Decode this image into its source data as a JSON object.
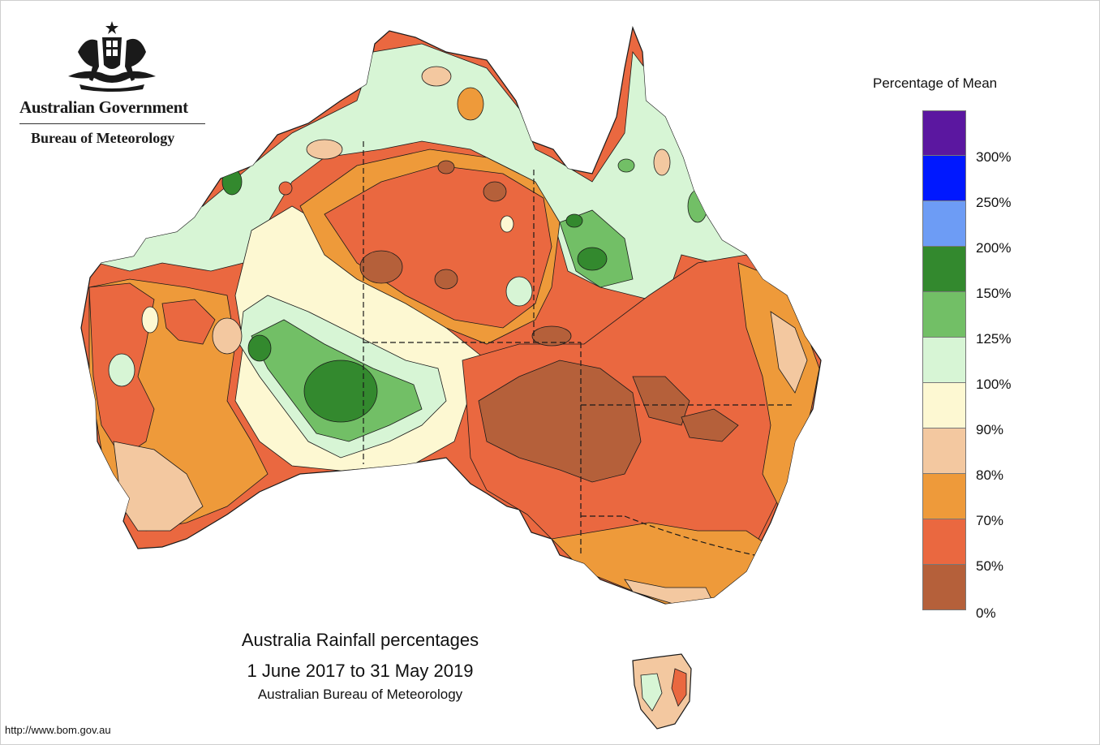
{
  "header": {
    "government": "Australian Government",
    "bureau": "Bureau of Meteorology",
    "crest_icon": "coat-of-arms-icon"
  },
  "legend": {
    "title": "Percentage of Mean",
    "bins": [
      {
        "label": "300%",
        "color": "#5b17a0"
      },
      {
        "label": "250%",
        "color": "#0018ff"
      },
      {
        "label": "200%",
        "color": "#6d9cf5"
      },
      {
        "label": "150%",
        "color": "#33892e"
      },
      {
        "label": "125%",
        "color": "#72bf66"
      },
      {
        "label": "100%",
        "color": "#d7f5d5"
      },
      {
        "label": "90%",
        "color": "#fdf8d2"
      },
      {
        "label": "80%",
        "color": "#f3c8a0"
      },
      {
        "label": "70%",
        "color": "#ee9a3a"
      },
      {
        "label": "50%",
        "color": "#ea6840"
      },
      {
        "label": "0%",
        "color": "#b5603a"
      }
    ]
  },
  "caption": {
    "title": "Australia Rainfall percentages",
    "period": "1 June 2017 to 31 May 2019",
    "source": "Australian Bureau of Meteorology"
  },
  "footer": {
    "url": "http://www.bom.gov.au"
  },
  "colors": {
    "very_much_below": "#b5603a",
    "below": "#ea6840",
    "slightly_below": "#ee9a3a",
    "near_below": "#f3c8a0",
    "near": "#fdf8d2",
    "above": "#d7f5d5",
    "well_above": "#72bf66",
    "much_above": "#33892e"
  }
}
